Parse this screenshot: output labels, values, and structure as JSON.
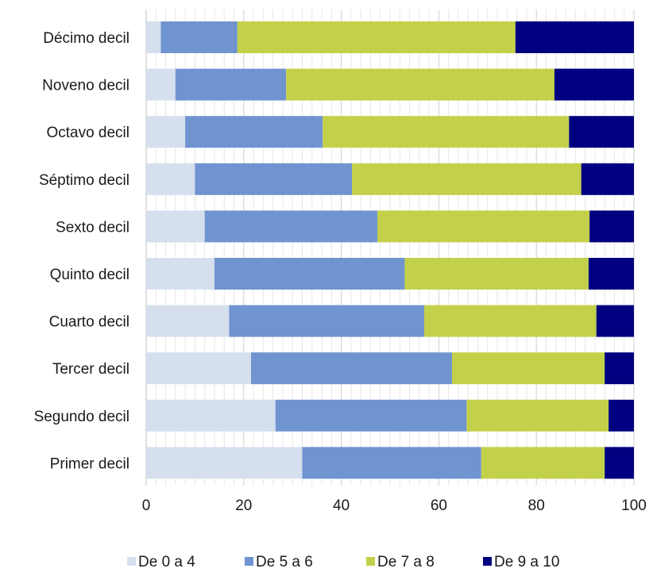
{
  "chart_data": {
    "type": "bar",
    "orientation": "horizontal",
    "stacked": true,
    "categories": [
      "Décimo decil",
      "Noveno decil",
      "Octavo decil",
      "Séptimo decil",
      "Sexto decil",
      "Quinto decil",
      "Cuarto decil",
      "Tercer decil",
      "Segundo decil",
      "Primer decil"
    ],
    "series": [
      {
        "name": "De 0 a 4",
        "color": "#d6dfee",
        "values": [
          3,
          6,
          8,
          10,
          12,
          14,
          17,
          21.5,
          26.5,
          32
        ]
      },
      {
        "name": "De 5 a 6",
        "color": "#7094d0",
        "values": [
          15.7,
          22.7,
          28.2,
          32.2,
          35.4,
          39,
          40,
          41.2,
          39.2,
          36.7
        ]
      },
      {
        "name": "De 7 a 8",
        "color": "#c3d14a",
        "values": [
          57,
          55,
          50.5,
          47,
          43.5,
          37.7,
          35.3,
          31.3,
          29.1,
          25.3
        ]
      },
      {
        "name": "De 9 a 10",
        "color": "#000080",
        "values": [
          24.3,
          16.3,
          13.3,
          10.8,
          9.1,
          9.3,
          7.7,
          6,
          5.2,
          6
        ]
      }
    ],
    "xlim": [
      0,
      100
    ],
    "xticks": [
      0,
      20,
      40,
      60,
      80,
      100
    ],
    "grid": "vertical",
    "legend_position": "bottom"
  }
}
